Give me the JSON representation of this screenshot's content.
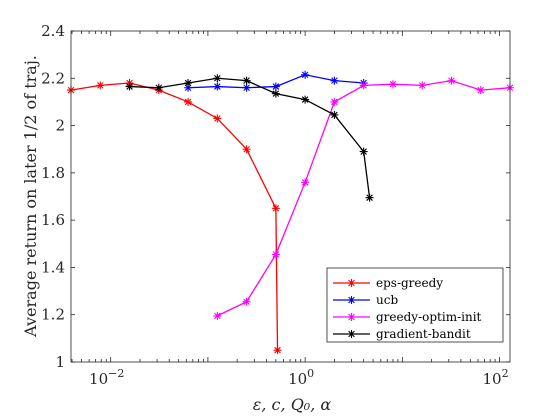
{
  "chart_data": {
    "type": "line",
    "title": "",
    "xlabel": "ε, c, Q₀, α",
    "ylabel": "Average return on later 1/2 of traj.",
    "xscale": "log",
    "xlim": [
      0.00390625,
      128
    ],
    "ylim": [
      1.0,
      2.4
    ],
    "x_ticks": [
      {
        "value": 0.01,
        "base": "10",
        "exp": "−2"
      },
      {
        "value": 1,
        "base": "10",
        "exp": "0"
      },
      {
        "value": 100,
        "base": "10",
        "exp": "2"
      }
    ],
    "y_ticks": [
      {
        "value": 1.0,
        "label": "1"
      },
      {
        "value": 1.2,
        "label": "1.2"
      },
      {
        "value": 1.4,
        "label": "1.4"
      },
      {
        "value": 1.6,
        "label": "1.6"
      },
      {
        "value": 1.8,
        "label": "1.8"
      },
      {
        "value": 2.0,
        "label": "2"
      },
      {
        "value": 2.2,
        "label": "2.2"
      },
      {
        "value": 2.4,
        "label": "2.4"
      }
    ],
    "grid": false,
    "legend_position": "bottom-right",
    "series": [
      {
        "name": "eps-greedy",
        "color": "#ff0000",
        "x": [
          0.00390625,
          0.0078125,
          0.015625,
          0.03125,
          0.0625,
          0.125,
          0.25,
          0.5
        ],
        "y": [
          2.15,
          2.17,
          2.18,
          2.15,
          2.1,
          2.03,
          1.9,
          1.65
        ]
      },
      {
        "name": "ucb",
        "color": "#0000ff",
        "x": [
          0.0625,
          0.125,
          0.25,
          0.5,
          1,
          2,
          4
        ],
        "y": [
          2.16,
          2.165,
          2.16,
          2.165,
          2.215,
          2.19,
          2.18
        ]
      },
      {
        "name": "greedy-optim-init",
        "color": "#ff00ff",
        "x": [
          0.125,
          0.25,
          0.5,
          1,
          2,
          4,
          8,
          16,
          32,
          64,
          128
        ],
        "y": [
          1.195,
          1.255,
          1.455,
          1.76,
          2.1,
          2.17,
          2.175,
          2.17,
          2.19,
          2.15,
          2.16
        ]
      },
      {
        "name": "gradient-bandit",
        "color": "#000000",
        "x": [
          0.015625,
          0.03125,
          0.0625,
          0.125,
          0.25,
          0.5,
          1,
          2,
          4
        ],
        "y": [
          2.165,
          2.16,
          2.18,
          2.2,
          2.19,
          2.135,
          2.11,
          2.045,
          1.89
        ]
      }
    ],
    "extra_points": {
      "eps-greedy": {
        "x": 0.52,
        "y": 1.05
      },
      "gradient-bandit": {
        "x": 4.6,
        "y": 1.695
      }
    }
  }
}
